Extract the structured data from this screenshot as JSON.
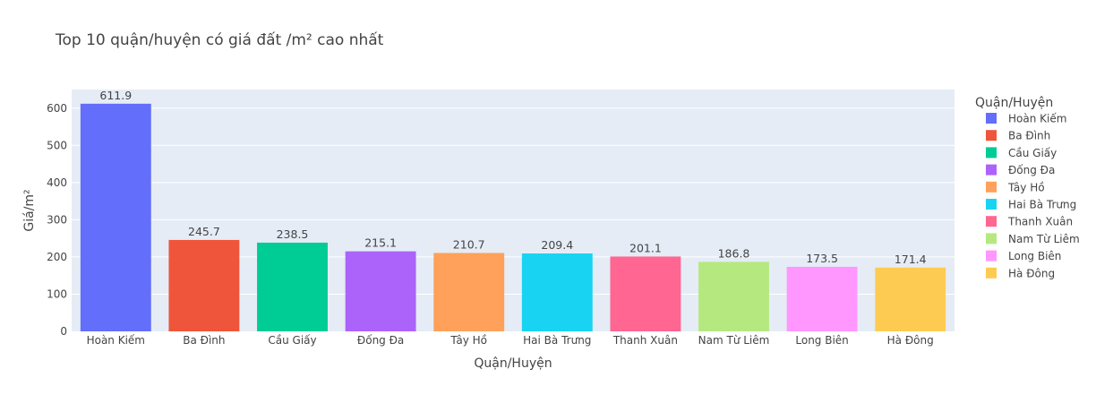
{
  "chart_data": {
    "type": "bar",
    "title": "Top 10 quận/huyện có giá đất /m² cao nhất",
    "xlabel": "Quận/Huyện",
    "ylabel": "Giá/m²",
    "ylim": [
      0,
      650
    ],
    "yticks": [
      0,
      100,
      200,
      300,
      400,
      500,
      600
    ],
    "grid": true,
    "legend_title": "Quận/Huyện",
    "legend_position": "right",
    "categories": [
      "Hoàn Kiếm",
      "Ba Đình",
      "Cầu Giấy",
      "Đống Đa",
      "Tây Hồ",
      "Hai Bà Trưng",
      "Thanh Xuân",
      "Nam Từ Liêm",
      "Long Biên",
      "Hà Đông"
    ],
    "values": [
      611.9,
      245.7,
      238.5,
      215.1,
      210.7,
      209.4,
      201.1,
      186.8,
      173.5,
      171.4
    ],
    "data_labels": [
      "611.9",
      "245.7",
      "238.5",
      "215.1",
      "210.7",
      "209.4",
      "201.1",
      "186.8",
      "173.5",
      "171.4"
    ],
    "colors": [
      "#636efa",
      "#EF553B",
      "#00cc96",
      "#ab63fa",
      "#FFA15A",
      "#19d3f3",
      "#FF6692",
      "#B6E880",
      "#FF97FF",
      "#FECB52"
    ]
  }
}
